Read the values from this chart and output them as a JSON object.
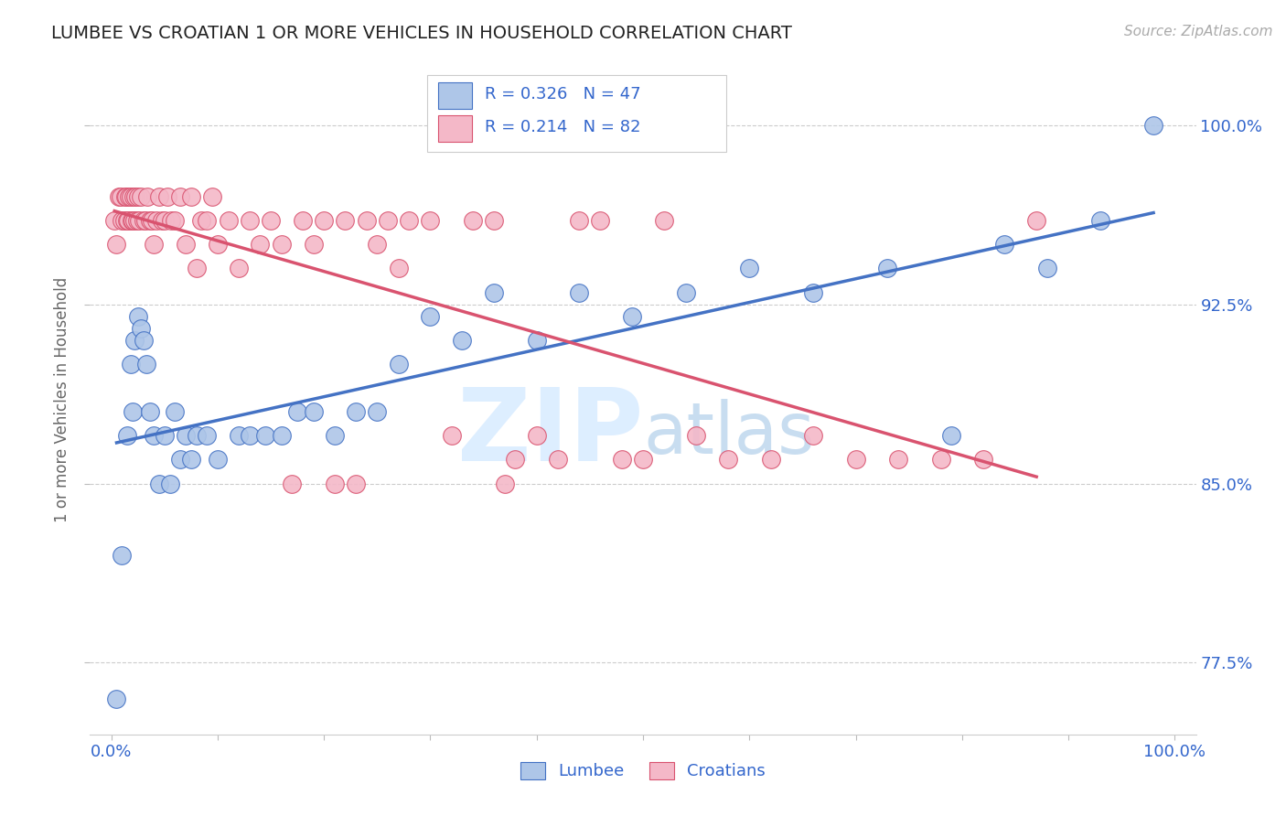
{
  "title": "LUMBEE VS CROATIAN 1 OR MORE VEHICLES IN HOUSEHOLD CORRELATION CHART",
  "ylabel": "1 or more Vehicles in Household",
  "source_text": "Source: ZipAtlas.com",
  "watermark": "ZIPatlas",
  "lumbee_R": 0.326,
  "lumbee_N": 47,
  "croatian_R": 0.214,
  "croatian_N": 82,
  "lumbee_color": "#aec6e8",
  "lumbee_line_color": "#4472c4",
  "croatian_color": "#f4b8c8",
  "croatian_line_color": "#d9536f",
  "legend_text_color": "#3366cc",
  "tick_color": "#3366cc",
  "title_color": "#222222",
  "ylabel_color": "#666666",
  "xlim": [
    -0.02,
    1.02
  ],
  "ylim": [
    0.745,
    1.025
  ],
  "yticks": [
    0.775,
    0.85,
    0.925,
    1.0
  ],
  "ytick_labels": [
    "77.5%",
    "85.0%",
    "92.5%",
    "100.0%"
  ],
  "xtick_labels": [
    "0.0%",
    "100.0%"
  ],
  "xtick_pos": [
    0.0,
    1.0
  ],
  "lumbee_x": [
    0.005,
    0.01,
    0.015,
    0.018,
    0.02,
    0.022,
    0.025,
    0.028,
    0.03,
    0.033,
    0.036,
    0.04,
    0.045,
    0.05,
    0.055,
    0.06,
    0.065,
    0.07,
    0.075,
    0.08,
    0.09,
    0.1,
    0.12,
    0.13,
    0.145,
    0.16,
    0.175,
    0.19,
    0.21,
    0.23,
    0.25,
    0.27,
    0.3,
    0.33,
    0.36,
    0.4,
    0.44,
    0.49,
    0.54,
    0.6,
    0.66,
    0.73,
    0.79,
    0.84,
    0.88,
    0.93,
    0.98
  ],
  "lumbee_y": [
    0.76,
    0.82,
    0.87,
    0.9,
    0.88,
    0.91,
    0.92,
    0.915,
    0.91,
    0.9,
    0.88,
    0.87,
    0.85,
    0.87,
    0.85,
    0.88,
    0.86,
    0.87,
    0.86,
    0.87,
    0.87,
    0.86,
    0.87,
    0.87,
    0.87,
    0.87,
    0.88,
    0.88,
    0.87,
    0.88,
    0.88,
    0.9,
    0.92,
    0.91,
    0.93,
    0.91,
    0.93,
    0.92,
    0.93,
    0.94,
    0.93,
    0.94,
    0.87,
    0.95,
    0.94,
    0.96,
    1.0
  ],
  "croatian_x": [
    0.003,
    0.005,
    0.007,
    0.009,
    0.01,
    0.012,
    0.013,
    0.014,
    0.015,
    0.016,
    0.017,
    0.018,
    0.019,
    0.02,
    0.021,
    0.022,
    0.023,
    0.024,
    0.025,
    0.026,
    0.028,
    0.03,
    0.032,
    0.034,
    0.036,
    0.038,
    0.04,
    0.042,
    0.045,
    0.048,
    0.05,
    0.053,
    0.056,
    0.06,
    0.065,
    0.07,
    0.075,
    0.08,
    0.085,
    0.09,
    0.095,
    0.1,
    0.11,
    0.12,
    0.13,
    0.14,
    0.15,
    0.16,
    0.17,
    0.18,
    0.19,
    0.2,
    0.21,
    0.22,
    0.23,
    0.24,
    0.25,
    0.26,
    0.27,
    0.28,
    0.3,
    0.32,
    0.34,
    0.36,
    0.37,
    0.38,
    0.4,
    0.42,
    0.44,
    0.46,
    0.48,
    0.5,
    0.52,
    0.55,
    0.58,
    0.62,
    0.66,
    0.7,
    0.74,
    0.78,
    0.82,
    0.87
  ],
  "croatian_y": [
    0.96,
    0.95,
    0.97,
    0.97,
    0.96,
    0.96,
    0.97,
    0.97,
    0.96,
    0.96,
    0.97,
    0.97,
    0.96,
    0.96,
    0.97,
    0.96,
    0.97,
    0.96,
    0.97,
    0.96,
    0.97,
    0.96,
    0.96,
    0.97,
    0.96,
    0.96,
    0.95,
    0.96,
    0.97,
    0.96,
    0.96,
    0.97,
    0.96,
    0.96,
    0.97,
    0.95,
    0.97,
    0.94,
    0.96,
    0.96,
    0.97,
    0.95,
    0.96,
    0.94,
    0.96,
    0.95,
    0.96,
    0.95,
    0.85,
    0.96,
    0.95,
    0.96,
    0.85,
    0.96,
    0.85,
    0.96,
    0.95,
    0.96,
    0.94,
    0.96,
    0.96,
    0.87,
    0.96,
    0.96,
    0.85,
    0.86,
    0.87,
    0.86,
    0.96,
    0.96,
    0.86,
    0.86,
    0.96,
    0.87,
    0.86,
    0.86,
    0.87,
    0.86,
    0.86,
    0.86,
    0.86,
    0.96
  ]
}
